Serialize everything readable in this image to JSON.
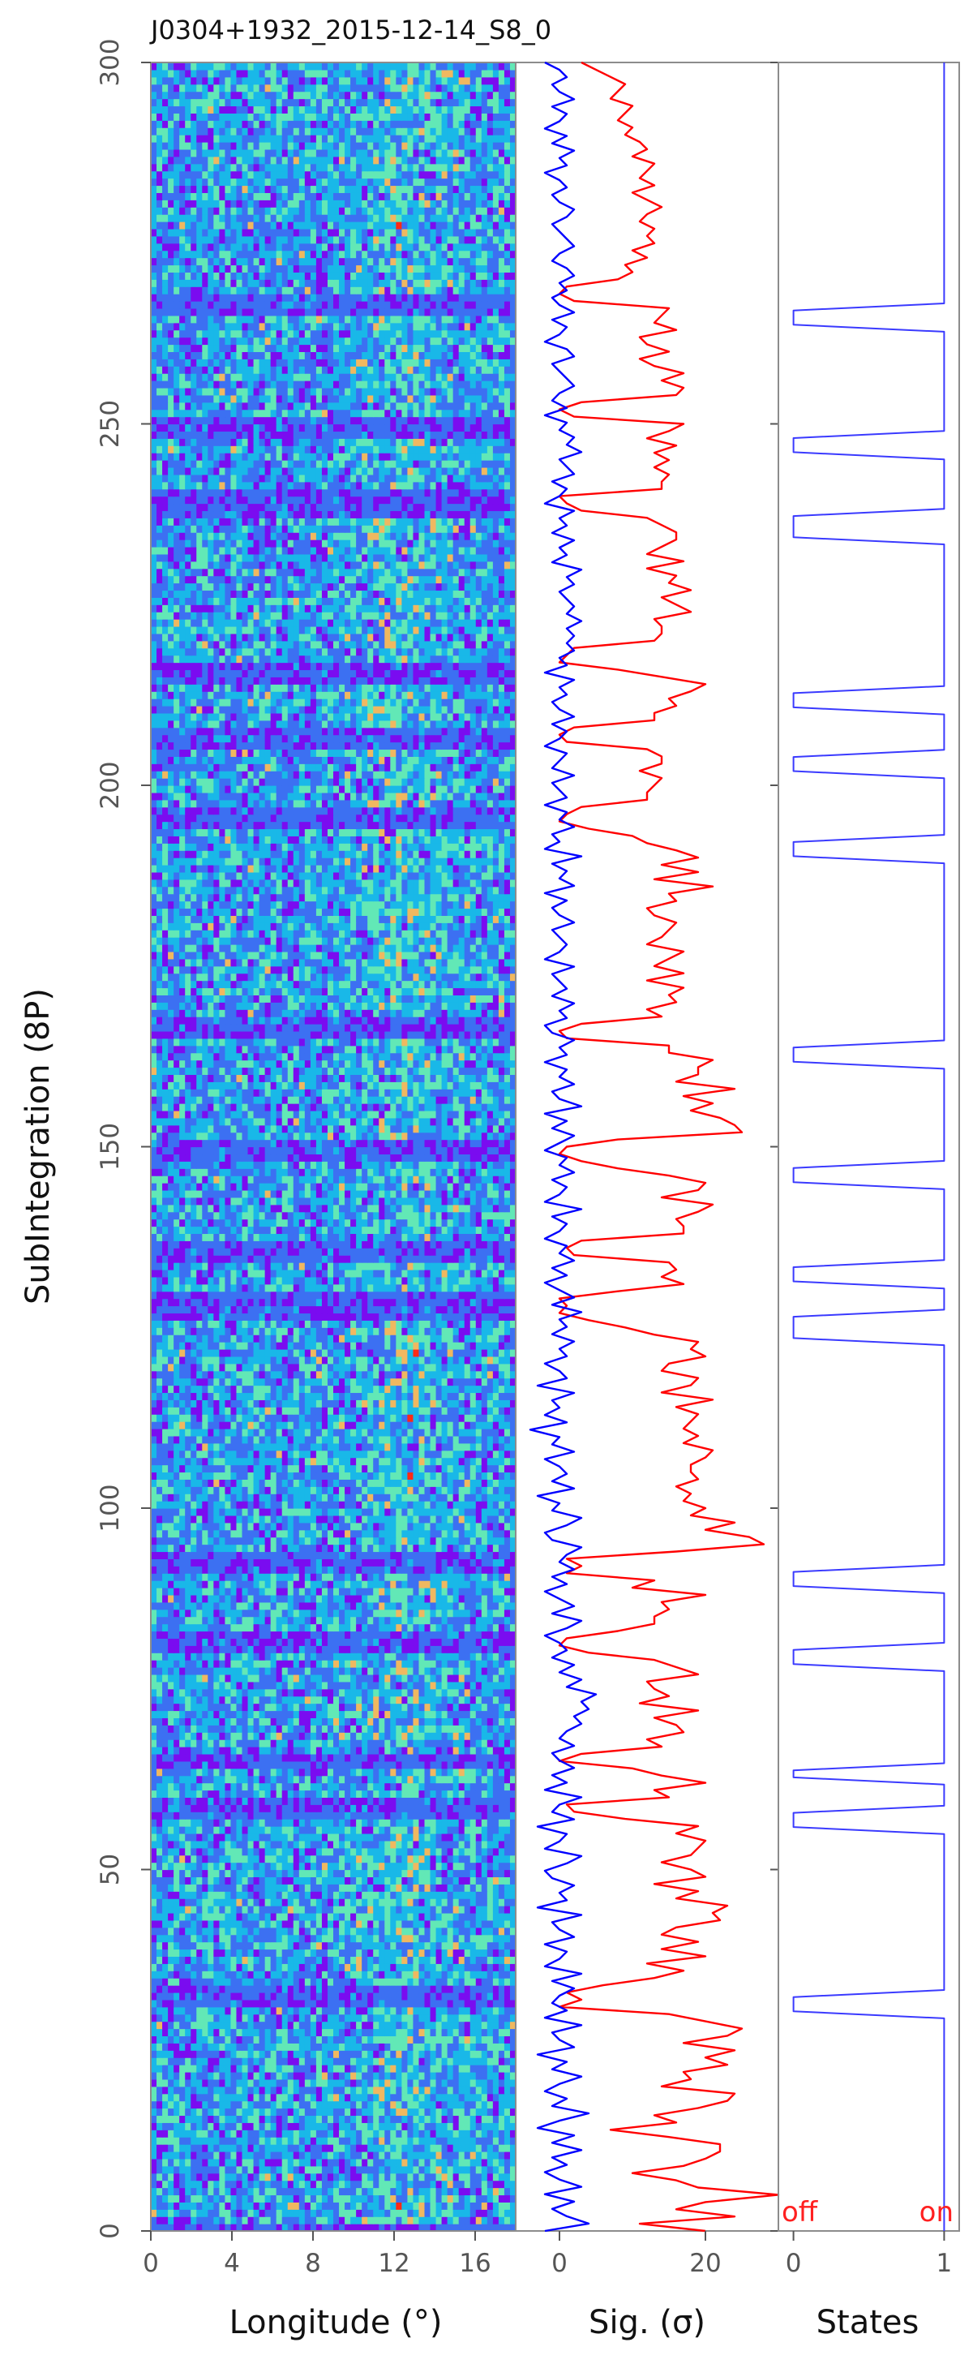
{
  "title": "J0304+1932_2015-12-14_S8_0",
  "chart_data": [
    {
      "type": "heatmap",
      "xlabel": "Longitude (°)",
      "ylabel": "SubIntegration (8P)",
      "xlim": [
        0,
        18
      ],
      "ylim": [
        0,
        300
      ],
      "x_ticks": [
        "0",
        "4",
        "8",
        "12",
        "16"
      ],
      "x_tick_values": [
        0,
        4,
        8,
        12,
        16
      ],
      "y_ticks": [
        "0",
        "50",
        "100",
        "150",
        "200",
        "250",
        "300"
      ],
      "y_tick_values": [
        0,
        50,
        100,
        150,
        200,
        250,
        300
      ],
      "colormap": [
        "#7a0cf0",
        "#3c70f2",
        "#19b8e8",
        "#62e8b6",
        "#f0b860",
        "#ff2a14"
      ],
      "pulse_window": [
        9,
        16
      ],
      "null_intervals": [
        [
          0,
          0
        ],
        [
          31,
          33
        ],
        [
          57,
          59
        ],
        [
          64,
          65
        ],
        [
          80,
          82
        ],
        [
          91,
          93
        ],
        [
          126,
          129
        ],
        [
          134,
          136
        ],
        [
          148,
          150
        ],
        [
          165,
          167
        ],
        [
          194,
          196
        ],
        [
          205,
          207
        ],
        [
          214,
          216
        ],
        [
          237,
          240
        ],
        [
          248,
          250
        ],
        [
          265,
          267
        ]
      ]
    },
    {
      "type": "line",
      "xlabel": "Sig. (σ)",
      "xlim": [
        -6,
        30
      ],
      "ylim": [
        0,
        300
      ],
      "x_ticks": [
        "0",
        "20"
      ],
      "x_tick_values": [
        0,
        20
      ],
      "series": [
        {
          "color": "#ff0000",
          "x": [
            20,
            11,
            24,
            16,
            20,
            30,
            19,
            16,
            10,
            17,
            20,
            22,
            22,
            15,
            7,
            16,
            13,
            19,
            23,
            24,
            14,
            18,
            17,
            23,
            20,
            24,
            17,
            23,
            25,
            20,
            15,
            0,
            3,
            1,
            6,
            13,
            17,
            12,
            20,
            14,
            19,
            14,
            16,
            22,
            21,
            23,
            16,
            19,
            13,
            20,
            18,
            14,
            18,
            19,
            20,
            16,
            19,
            9,
            2,
            1,
            15,
            13,
            20,
            14,
            10,
            0,
            3,
            14,
            12,
            17,
            16,
            13,
            19,
            11,
            15,
            13,
            12,
            19,
            16,
            13,
            4,
            0,
            1,
            8,
            13,
            13,
            15,
            14,
            20,
            10,
            13,
            1,
            3,
            1,
            16,
            28,
            26,
            20,
            24,
            18,
            20,
            17,
            18,
            16,
            19,
            18,
            18,
            20,
            21,
            17,
            19,
            17,
            18,
            19,
            16,
            21,
            14,
            18,
            19,
            14,
            15,
            20,
            18,
            19,
            13,
            9,
            4,
            0,
            1,
            0,
            8,
            17,
            14,
            16,
            15,
            2,
            1,
            3,
            17,
            17,
            16,
            19,
            21,
            14,
            19,
            20,
            15,
            8,
            3,
            0,
            1,
            8,
            25,
            24,
            22,
            18,
            21,
            17,
            24,
            16,
            19,
            19,
            21,
            15,
            15,
            1,
            0,
            3,
            14,
            12,
            16,
            15,
            17,
            12,
            17,
            13,
            15,
            17,
            12,
            14,
            15,
            16,
            13,
            12,
            16,
            15,
            21,
            13,
            19,
            14,
            19,
            16,
            12,
            10,
            4,
            0,
            1,
            3,
            12,
            12,
            13,
            14,
            11,
            14,
            14,
            12,
            1,
            0,
            2,
            13,
            13,
            16,
            15,
            18,
            20,
            14,
            8,
            0,
            1,
            2,
            13,
            14,
            14,
            13,
            18,
            16,
            14,
            18,
            15,
            16,
            12,
            17,
            12,
            14,
            16,
            16,
            14,
            12,
            3,
            1,
            0,
            14,
            14,
            15,
            13,
            15,
            13,
            16,
            12,
            15,
            17,
            2,
            0,
            3,
            16,
            17,
            14,
            17,
            13,
            11,
            15,
            12,
            11,
            16,
            13,
            14,
            15,
            2,
            0,
            1,
            8,
            10,
            9,
            12,
            10,
            13,
            12,
            13,
            11,
            12,
            14,
            12,
            10,
            13,
            11,
            12,
            13,
            10,
            12,
            11,
            9,
            10,
            8,
            9,
            10,
            7,
            8,
            9,
            7,
            5,
            3
          ]
        },
        {
          "color": "#0000ff",
          "x": [
            -2,
            4,
            1,
            -1,
            2,
            -2,
            3,
            0,
            -2,
            1,
            -1,
            3,
            -1,
            2,
            -3,
            0,
            4,
            -1,
            1,
            -2,
            0,
            3,
            -1,
            1,
            -3,
            2,
            0,
            -1,
            3,
            -2,
            1,
            -1,
            0,
            2,
            -1,
            3,
            -2,
            0,
            1,
            -2,
            2,
            0,
            -1,
            3,
            -3,
            1,
            0,
            2,
            -1,
            -2,
            1,
            3,
            -2,
            0,
            1,
            -3,
            2,
            -1,
            0,
            3,
            -2,
            1,
            -1,
            2,
            0,
            -1,
            2,
            0,
            1,
            3,
            2,
            4,
            3,
            5,
            1,
            3,
            0,
            2,
            -1,
            1,
            0,
            -2,
            1,
            3,
            -1,
            2,
            0,
            -2,
            1,
            -1,
            2,
            0,
            1,
            3,
            -1,
            -2,
            1,
            3,
            -1,
            0,
            -3,
            2,
            -1,
            1,
            0,
            -2,
            2,
            -1,
            0,
            -4,
            1,
            -2,
            0,
            -1,
            2,
            -3,
            1,
            0,
            -2,
            1,
            0,
            2,
            -1,
            1,
            0,
            3,
            -1,
            2,
            0,
            -2,
            1,
            -1,
            2,
            0,
            1,
            -2,
            0,
            1,
            -1,
            3,
            -2,
            0,
            1,
            -1,
            2,
            0,
            1,
            -2,
            0,
            2,
            -1,
            1,
            -2,
            3,
            0,
            -1,
            2,
            0,
            1,
            -2,
            1,
            0,
            2,
            -1,
            -2,
            1,
            0,
            2,
            -1,
            1,
            0,
            -1,
            2,
            -2,
            0,
            1,
            0,
            -1,
            2,
            0,
            -1,
            1,
            -2,
            2,
            0,
            1,
            -1,
            3,
            -2,
            0,
            -1,
            2,
            0,
            1,
            -2,
            1,
            0,
            -1,
            2,
            -1,
            0,
            1,
            -2,
            0,
            1,
            -1,
            2,
            0,
            -1,
            1,
            0,
            2,
            -2,
            1,
            0,
            2,
            1,
            2,
            1,
            3,
            1,
            2,
            1,
            0,
            2,
            1,
            3,
            -1,
            1,
            0,
            2,
            -1,
            1,
            0,
            2,
            -2,
            0,
            1,
            -1,
            2,
            1,
            0,
            3,
            1,
            2,
            0,
            1,
            -2,
            1,
            -1,
            0,
            2,
            1,
            0,
            -1,
            2,
            1,
            -2,
            0,
            1,
            -1,
            2,
            0,
            -1,
            1,
            0,
            2,
            1,
            -1,
            0,
            2,
            1,
            0,
            -1,
            1,
            2,
            0,
            -1,
            1,
            0,
            -2,
            1,
            0,
            2,
            -1,
            1,
            -2,
            0,
            1,
            -1,
            2,
            0,
            -1,
            1,
            0,
            -2
          ]
        }
      ]
    },
    {
      "type": "line",
      "xlabel": "States",
      "xlim": [
        -0.1,
        1.1
      ],
      "ylim": [
        0,
        300
      ],
      "x_ticks": [
        "0",
        "1"
      ],
      "x_tick_values": [
        0,
        1
      ],
      "annotations": [
        "off",
        "on"
      ],
      "series": [
        {
          "color": "#3a3aff",
          "x": [
            1,
            1,
            1,
            1,
            1,
            1,
            1,
            1,
            1,
            1,
            1,
            1,
            1,
            1,
            1,
            1,
            1,
            1,
            1,
            1,
            1,
            1,
            1,
            1,
            1,
            1,
            1,
            1,
            1,
            1,
            1,
            0,
            0,
            0,
            1,
            1,
            1,
            1,
            1,
            1,
            1,
            1,
            1,
            1,
            1,
            1,
            1,
            1,
            1,
            1,
            1,
            1,
            1,
            1,
            1,
            1,
            1,
            0,
            0,
            0,
            1,
            1,
            1,
            1,
            0,
            0,
            1,
            1,
            1,
            1,
            1,
            1,
            1,
            1,
            1,
            1,
            1,
            1,
            1,
            1,
            0,
            0,
            0,
            1,
            1,
            1,
            1,
            1,
            1,
            1,
            1,
            0,
            0,
            0,
            1,
            1,
            1,
            1,
            1,
            1,
            1,
            1,
            1,
            1,
            1,
            1,
            1,
            1,
            1,
            1,
            1,
            1,
            1,
            1,
            1,
            1,
            1,
            1,
            1,
            1,
            1,
            1,
            1,
            1,
            1,
            1,
            0,
            0,
            0,
            0,
            1,
            1,
            1,
            1,
            0,
            0,
            0,
            1,
            1,
            1,
            1,
            1,
            1,
            1,
            1,
            1,
            1,
            1,
            0,
            0,
            0,
            1,
            1,
            1,
            1,
            1,
            1,
            1,
            1,
            1,
            1,
            1,
            1,
            1,
            1,
            0,
            0,
            0,
            1,
            1,
            1,
            1,
            1,
            1,
            1,
            1,
            1,
            1,
            1,
            1,
            1,
            1,
            1,
            1,
            1,
            1,
            1,
            1,
            1,
            1,
            1,
            1,
            1,
            1,
            0,
            0,
            0,
            1,
            1,
            1,
            1,
            1,
            1,
            1,
            1,
            1,
            0,
            0,
            0,
            1,
            1,
            1,
            1,
            1,
            1,
            0,
            0,
            0,
            1,
            1,
            1,
            1,
            1,
            1,
            1,
            1,
            1,
            1,
            1,
            1,
            1,
            1,
            1,
            1,
            1,
            1,
            1,
            1,
            1,
            0,
            0,
            0,
            0,
            1,
            1,
            1,
            1,
            1,
            1,
            1,
            1,
            0,
            0,
            0,
            1,
            1,
            1,
            1,
            1,
            1,
            1,
            1,
            1,
            1,
            1,
            1,
            1,
            1,
            1,
            0,
            0,
            0,
            1,
            1,
            1,
            1,
            1,
            1,
            1,
            1,
            1,
            1,
            1,
            1,
            1,
            1,
            1,
            1,
            1,
            1,
            1,
            1,
            1,
            1,
            1,
            1,
            1,
            1,
            1,
            1,
            1,
            1,
            1,
            1,
            1,
            1,
            1
          ]
        }
      ]
    }
  ]
}
